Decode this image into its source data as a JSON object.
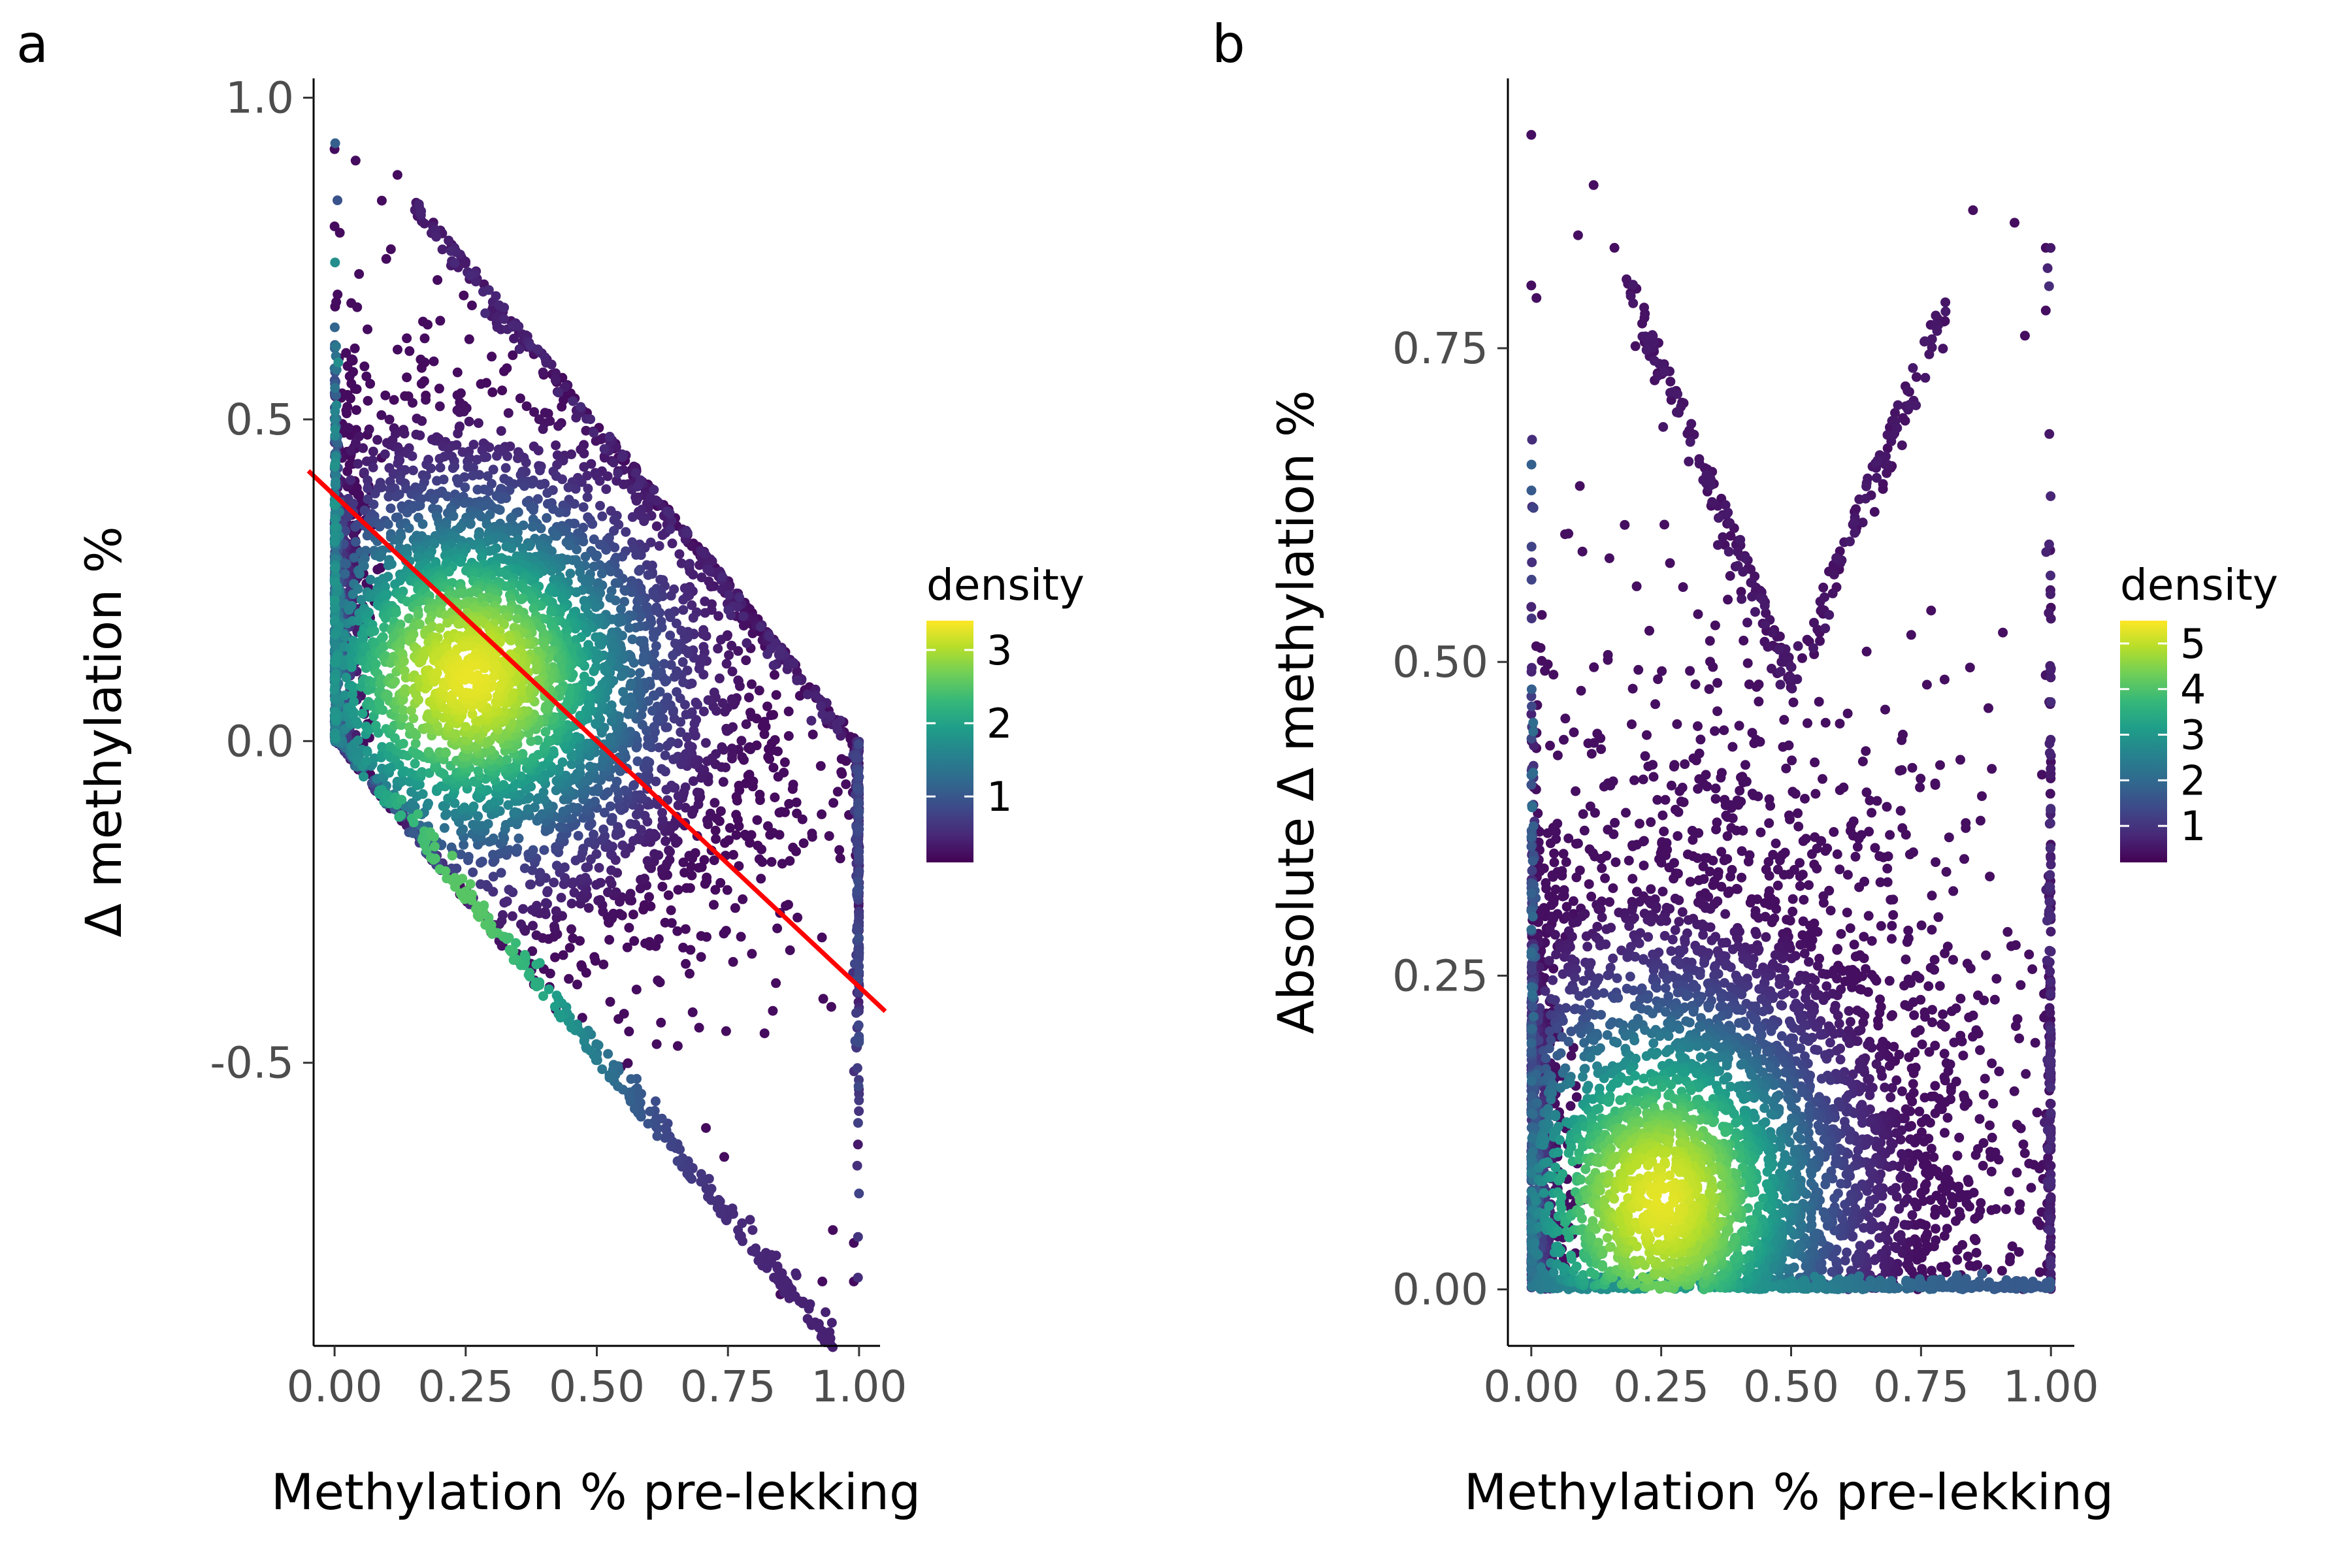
{
  "panel_labels": [
    "a",
    "b"
  ],
  "colormap": [
    "#440154",
    "#482878",
    "#3e4989",
    "#31688e",
    "#26828e",
    "#1f9e89",
    "#35b779",
    "#6ece58",
    "#b5de2b",
    "#fde725"
  ],
  "fit_line_color": "#ff0000",
  "chart_data": [
    {
      "type": "scatter",
      "panel": "a",
      "title": "",
      "xlabel": "Methylation % pre-lekking",
      "ylabel": "Δ methylation %",
      "xlim": [
        -0.04,
        1.04
      ],
      "ylim": [
        -0.94,
        1.03
      ],
      "xticks": [
        0,
        0.25,
        0.5,
        0.75,
        1
      ],
      "xtick_labels": [
        "0.00",
        "0.25",
        "0.50",
        "0.75",
        "1.00"
      ],
      "yticks": [
        -0.5,
        0,
        0.5,
        1
      ],
      "ytick_labels": [
        "-0.5",
        "0.0",
        "0.5",
        "1.0"
      ],
      "grid": false,
      "legend": {
        "title": "density",
        "position": "right",
        "range": [
          0.1,
          3.4
        ],
        "ticks": [
          1,
          2,
          3
        ],
        "tick_labels": [
          "1",
          "2",
          "3"
        ]
      },
      "fit_line": {
        "x": [
          -0.05,
          1.05
        ],
        "y": [
          0.42,
          -0.42
        ]
      },
      "density_peak": {
        "x": 0.26,
        "y": 0.1,
        "value": 3.3
      },
      "outlier_points": [
        [
          0.0,
          0.92
        ],
        [
          0.12,
          0.88
        ],
        [
          0.0,
          0.8
        ],
        [
          0.09,
          0.84
        ],
        [
          0.85,
          -0.86
        ],
        [
          0.93,
          -0.84
        ],
        [
          0.99,
          -0.84
        ],
        [
          0.99,
          -0.78
        ],
        [
          0.95,
          -0.76
        ],
        [
          0.01,
          0.79
        ],
        [
          0.16,
          0.83
        ]
      ]
    },
    {
      "type": "scatter",
      "panel": "b",
      "title": "",
      "xlabel": "Methylation % pre-lekking",
      "ylabel": "Absolute Δ methylation %",
      "xlim": [
        -0.045,
        1.045
      ],
      "ylim": [
        -0.045,
        0.965
      ],
      "xticks": [
        0,
        0.25,
        0.5,
        0.75,
        1
      ],
      "xtick_labels": [
        "0.00",
        "0.25",
        "0.50",
        "0.75",
        "1.00"
      ],
      "yticks": [
        0,
        0.25,
        0.5,
        0.75
      ],
      "ytick_labels": [
        "0.00",
        "0.25",
        "0.50",
        "0.75"
      ],
      "grid": false,
      "legend": {
        "title": "density",
        "position": "right",
        "range": [
          0.2,
          5.5
        ],
        "ticks": [
          1,
          2,
          3,
          4,
          5
        ],
        "tick_labels": [
          "1",
          "2",
          "3",
          "4",
          "5"
        ]
      },
      "density_peak": {
        "x": 0.25,
        "y": 0.07,
        "value": 5.3
      },
      "outlier_points": [
        [
          0.0,
          0.92
        ],
        [
          0.12,
          0.88
        ],
        [
          0.09,
          0.84
        ],
        [
          0.16,
          0.83
        ],
        [
          0.85,
          0.86
        ],
        [
          0.93,
          0.85
        ],
        [
          0.99,
          0.83
        ],
        [
          0.99,
          0.78
        ],
        [
          0.95,
          0.76
        ],
        [
          0.01,
          0.79
        ],
        [
          0.0,
          0.8
        ]
      ]
    }
  ]
}
